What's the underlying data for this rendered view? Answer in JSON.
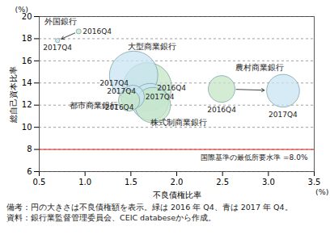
{
  "chart_data": {
    "type": "bubble",
    "y_label": "総自己資本比率",
    "y_unit": "(%)",
    "x_label": "不良債権比率",
    "x_unit": "(%)",
    "xlim": [
      0.5,
      3.5
    ],
    "xticks": [
      0.5,
      {
        "value": 1,
        "label": "1.0"
      },
      1.5,
      {
        "value": 2,
        "label": "2.0"
      },
      2.5,
      {
        "value": 3,
        "label": "3.0"
      },
      3.5
    ],
    "ylim": [
      6,
      20
    ],
    "yticks": [
      6,
      8,
      10,
      12,
      14,
      16,
      18,
      20
    ],
    "grid": true,
    "periods": [
      "2016Q4",
      "2017Q4"
    ],
    "colors": [
      "#c5e5c6",
      "#c8e4f2"
    ],
    "series": [
      {
        "name": "外国銀行",
        "x": [
          0.93,
          0.7
        ],
        "y": [
          18.66,
          17.83
        ],
        "size": [
          80,
          60
        ]
      },
      {
        "name": "大型商業銀行",
        "x": [
          1.68,
          1.53
        ],
        "y": [
          13.65,
          14.7
        ],
        "size": [
          7761,
          7725
        ]
      },
      {
        "name": "農村商業銀行",
        "x": [
          2.49,
          3.16
        ],
        "y": [
          13.46,
          13.3
        ],
        "size": [
          2349,
          3566
        ]
      },
      {
        "name": "都市商業銀行",
        "x": [
          1.48,
          1.52
        ],
        "y": [
          12.42,
          12.75
        ],
        "size": [
          1498,
          1823
        ]
      },
      {
        "name": "株式制商業銀行",
        "x": [
          1.74,
          1.71
        ],
        "y": [
          12.0,
          12.3
        ],
        "size": [
          4143,
          4469
        ]
      }
    ],
    "reference_line": {
      "value": 8,
      "label": "国際基準の最低所要水準 =8.0%",
      "color": "#e02020"
    },
    "notes": [
      "備考：円の大きさは不良債権額を表示。緑は 2016 年 Q4、青は 2017 年 Q4。",
      "資料：銀行業監督管理委員会、CEIC databeseから作成。"
    ]
  }
}
